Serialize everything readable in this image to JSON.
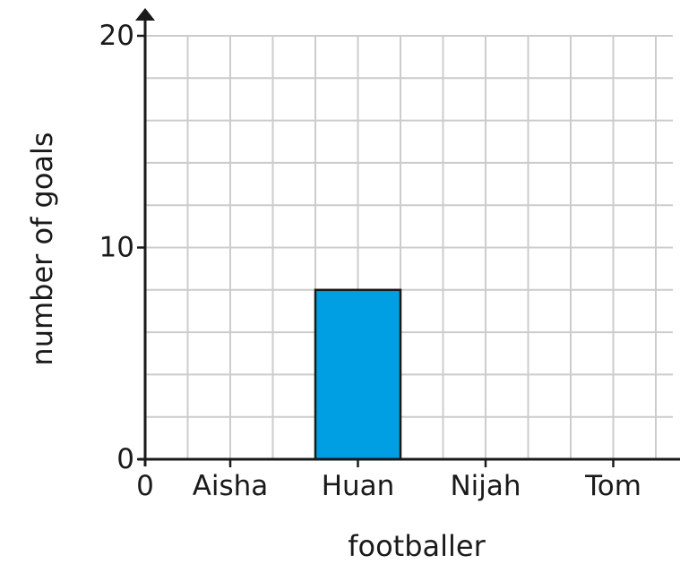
{
  "chart_data": {
    "type": "bar",
    "title": "",
    "xlabel": "footballer",
    "ylabel": "number of goals",
    "categories": [
      "Aisha",
      "Huan",
      "Nijah",
      "Tom"
    ],
    "values": [
      null,
      8,
      null,
      null
    ],
    "ylim": [
      0,
      20
    ],
    "y_ticks": [
      "0",
      "10",
      "20"
    ],
    "x_origin_label": "0",
    "grid": true,
    "bar_color": "#009fe3",
    "bar_outline_color": "#1a1a1a",
    "grid_color": "#cccccc",
    "axis_color": "#1a1a1a"
  }
}
